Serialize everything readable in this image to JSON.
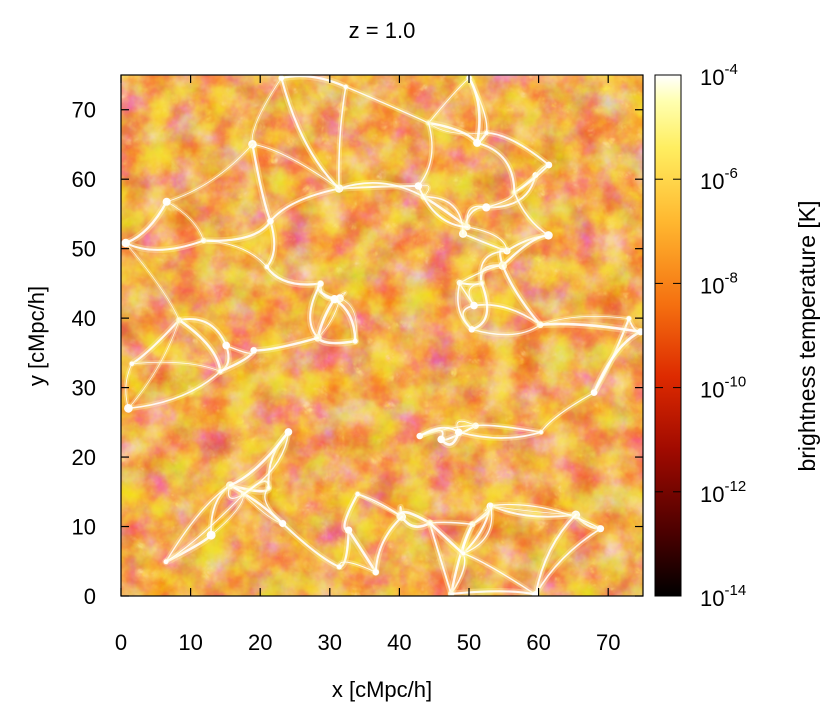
{
  "chart_data": {
    "type": "heatmap",
    "title": "z = 1.0",
    "xlabel": "x [cMpc/h]",
    "ylabel": "y [cMpc/h]",
    "xlim": [
      0,
      75
    ],
    "ylim": [
      0,
      75
    ],
    "x_ticks": [
      0,
      10,
      20,
      30,
      40,
      50,
      60,
      70
    ],
    "y_ticks": [
      0,
      10,
      20,
      30,
      40,
      50,
      60,
      70
    ],
    "x_tick_labels": [
      "0",
      "10",
      "20",
      "30",
      "40",
      "50",
      "60",
      "70"
    ],
    "y_tick_labels": [
      "0",
      "10",
      "20",
      "30",
      "40",
      "50",
      "60",
      "70"
    ],
    "colorbar": {
      "label": "brightness temperature [K]",
      "scale": "log",
      "range": [
        1e-14,
        0.0001
      ],
      "tick_values": [
        1e-14,
        1e-12,
        1e-10,
        1e-08,
        1e-06,
        0.0001
      ],
      "tick_base": "10",
      "tick_exponents": [
        "-14",
        "-12",
        "-10",
        "-8",
        "-6",
        "-4"
      ],
      "colormap": [
        "#000000",
        "#6a0000",
        "#cc1a00",
        "#ff6a00",
        "#ffd020",
        "#ffff8a",
        "#ffffff"
      ]
    },
    "field_description_colors": {
      "void": "#c82a08",
      "filament": "#fff6b0",
      "node": "#ffffff"
    }
  }
}
